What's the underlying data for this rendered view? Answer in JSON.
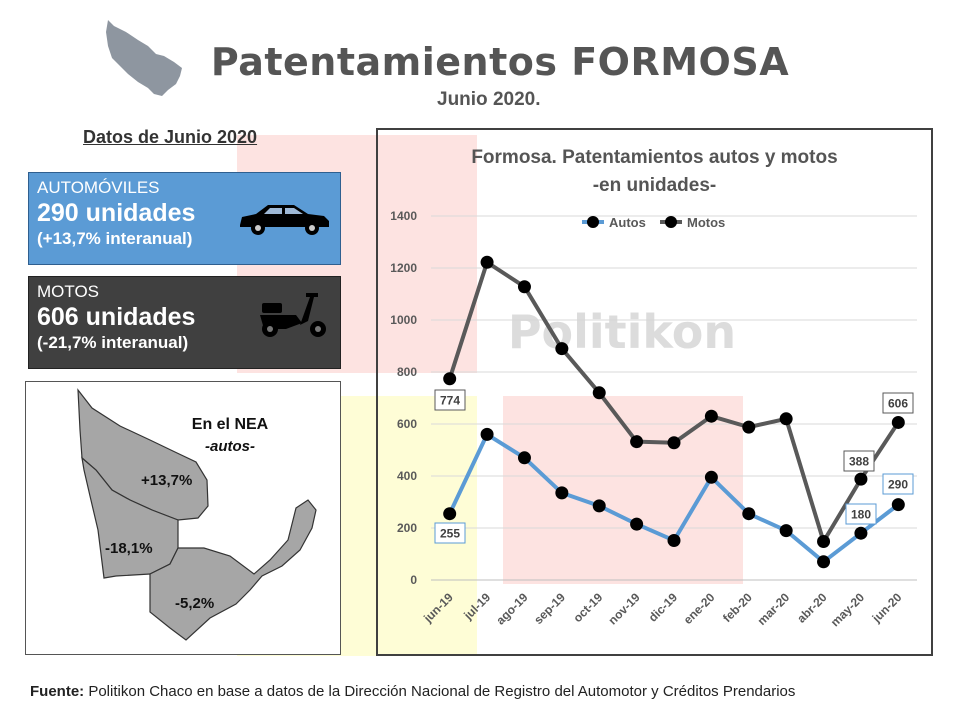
{
  "header": {
    "title": "Patentamientos FORMOSA",
    "subtitle": "Junio 2020."
  },
  "left_panel": {
    "heading": "Datos de Junio 2020",
    "autos_card": {
      "label": "AUTOMÓVILES",
      "value": "290 unidades",
      "change": "(+13,7% interanual)",
      "icon": "car-icon",
      "color": "#5b9bd5"
    },
    "motos_card": {
      "label": "MOTOS",
      "value": "606 unidades",
      "change": "(-21,7% interanual)",
      "icon": "scooter-icon",
      "color": "#404040"
    },
    "map": {
      "title_line1": "En el NEA",
      "title_line2": "-autos-",
      "labels": [
        "+13,7%",
        "-18,1%",
        "-5,2%"
      ]
    }
  },
  "chart_data": {
    "type": "line",
    "title": "Formosa. Patentamientos autos y motos",
    "subtitle": "-en unidades-",
    "watermark": "Politikon",
    "categories": [
      "jun-19",
      "jul-19",
      "ago-19",
      "sep-19",
      "oct-19",
      "nov-19",
      "dic-19",
      "ene-20",
      "feb-20",
      "mar-20",
      "abr-20",
      "may-20",
      "jun-20"
    ],
    "ylim": [
      0,
      1400
    ],
    "yticks": [
      0,
      200,
      400,
      600,
      800,
      1000,
      1200,
      1400
    ],
    "grid": true,
    "legend_position": "top",
    "series": [
      {
        "name": "Autos",
        "color": "#5b9bd5",
        "values": [
          255,
          560,
          470,
          335,
          285,
          215,
          152,
          395,
          255,
          190,
          70,
          180,
          290
        ],
        "labels": {
          "0": "255",
          "11": "180",
          "12": "290"
        }
      },
      {
        "name": "Motos",
        "color": "#595959",
        "values": [
          774,
          1222,
          1128,
          890,
          720,
          532,
          528,
          630,
          588,
          620,
          148,
          388,
          606
        ],
        "labels": {
          "0": "774",
          "11": "388",
          "12": "606"
        }
      }
    ]
  },
  "footer": {
    "source_label": "Fuente:",
    "source_text": " Politikon Chaco en base a datos de la Dirección Nacional de Registro del Automotor y Créditos Prendarios"
  }
}
